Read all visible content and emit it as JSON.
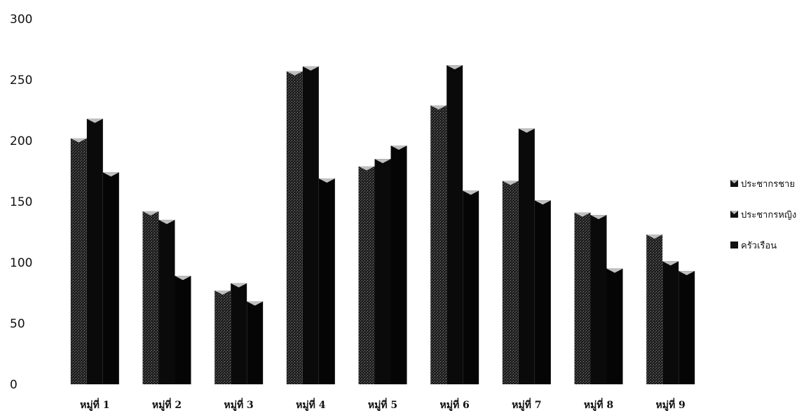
{
  "chart_data": {
    "type": "bar",
    "categories": [
      "หมู่ที่ 1",
      "หมู่ที่ 2",
      "หมู่ที่ 3",
      "หมู่ที่ 4",
      "หมู่ที่ 5",
      "หมู่ที่ 6",
      "หมู่ที่ 7",
      "หมู่ที่ 8",
      "หมู่ที่ 9"
    ],
    "series": [
      {
        "name": "ประชากรชาย",
        "values": [
          202,
          142,
          77,
          257,
          179,
          229,
          167,
          141,
          123
        ],
        "color": "#2b2b2b"
      },
      {
        "name": "ประชากรหญิง",
        "values": [
          218,
          135,
          83,
          261,
          185,
          262,
          210,
          139,
          101
        ],
        "color": "#0a0a0a"
      },
      {
        "name": "ครัวเรือน",
        "values": [
          174,
          89,
          68,
          169,
          196,
          159,
          151,
          95,
          93
        ],
        "color": "#050505"
      }
    ],
    "y_ticks": [
      0,
      50,
      100,
      150,
      200,
      250,
      300
    ],
    "ylim": [
      0,
      300
    ],
    "grid": false,
    "legend_position": "right"
  }
}
